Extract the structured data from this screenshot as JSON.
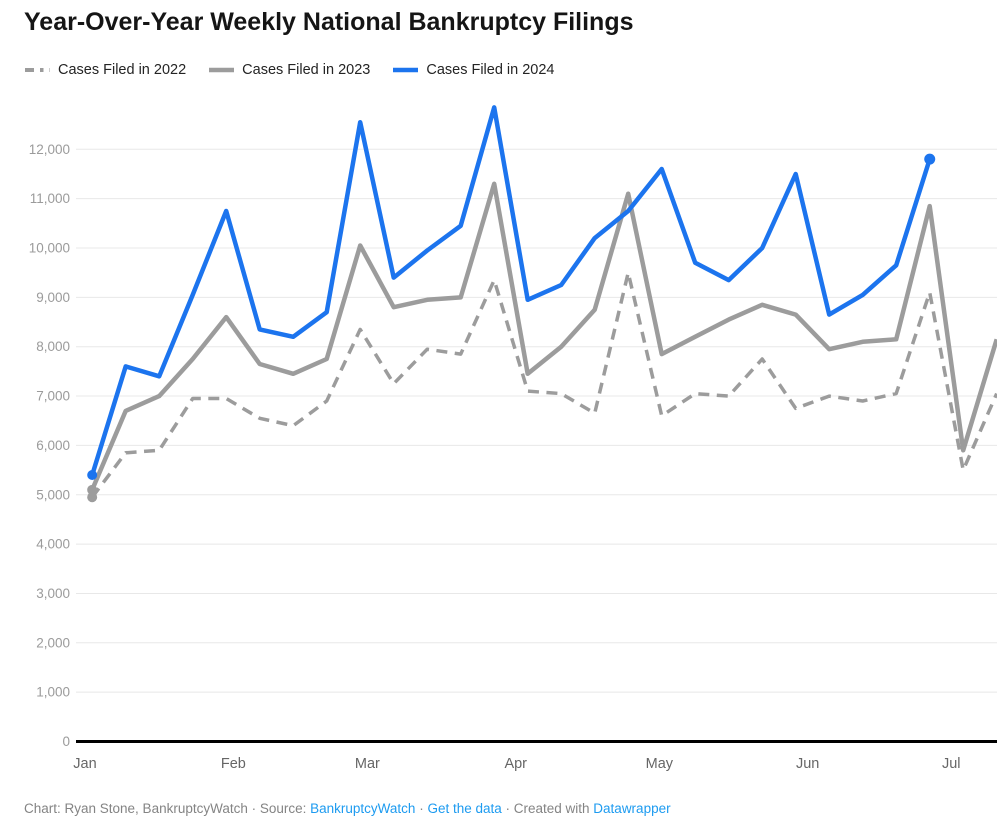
{
  "title": "Year-Over-Year Weekly National Bankruptcy Filings",
  "legend": {
    "items": [
      {
        "label": "Cases Filed in 2022",
        "style": "dashed",
        "color": "#9c9c9c"
      },
      {
        "label": "Cases Filed in 2023",
        "style": "solid",
        "color": "#9c9c9c"
      },
      {
        "label": "Cases Filed in 2024",
        "style": "solid",
        "color": "#1c74ee"
      }
    ]
  },
  "chart_data": {
    "type": "line",
    "title": "Year-Over-Year Weekly National Bankruptcy Filings",
    "x_frequency": "weekly",
    "x_tick_labels": [
      "Jan",
      "Feb",
      "Mar",
      "Apr",
      "May",
      "Jun",
      "Jul"
    ],
    "y_tick_labels": [
      "0",
      "1,000",
      "2,000",
      "3,000",
      "4,000",
      "5,000",
      "6,000",
      "7,000",
      "8,000",
      "9,000",
      "10,000",
      "11,000",
      "12,000"
    ],
    "y_ticks": [
      0,
      1000,
      2000,
      3000,
      4000,
      5000,
      6000,
      7000,
      8000,
      9000,
      10000,
      11000,
      12000
    ],
    "ylim": [
      0,
      12900
    ],
    "grid": "horizontal",
    "legend_position": "top-left",
    "series": [
      {
        "name": "Cases Filed in 2022",
        "color": "#9c9c9c",
        "line_style": "dashed",
        "start_dot": true,
        "end_dot": false,
        "values": [
          4950,
          5850,
          5900,
          6950,
          6950,
          6550,
          6400,
          6900,
          8350,
          7250,
          7950,
          7850,
          9350,
          7100,
          7050,
          6650,
          9500,
          6600,
          7050,
          7000,
          7750,
          6750,
          7000,
          6900,
          7050,
          9100,
          5500,
          7050
        ]
      },
      {
        "name": "Cases Filed in 2023",
        "color": "#9c9c9c",
        "line_style": "solid",
        "start_dot": true,
        "end_dot": false,
        "values": [
          5100,
          6700,
          7000,
          7750,
          8600,
          7650,
          7450,
          7750,
          10050,
          8800,
          8950,
          9000,
          11300,
          7450,
          8000,
          8750,
          11100,
          7850,
          8200,
          8550,
          8850,
          8650,
          7950,
          8100,
          8150,
          10850,
          5900,
          8150
        ]
      },
      {
        "name": "Cases Filed in 2024",
        "color": "#1c74ee",
        "line_style": "solid",
        "start_dot": true,
        "end_dot": true,
        "values": [
          5400,
          7600,
          7400,
          9050,
          10750,
          8350,
          8200,
          8700,
          12550,
          9400,
          9950,
          10450,
          12850,
          8950,
          9250,
          10200,
          10750,
          11600,
          9700,
          9350,
          10000,
          11500,
          8650,
          9050,
          9650,
          11800
        ]
      }
    ],
    "axis_color": "#000000",
    "gridline_color": "#e8e8e8"
  },
  "footer": {
    "segments": [
      {
        "text": "Chart: Ryan Stone, BankruptcyWatch",
        "link": false
      },
      {
        "text": " · ",
        "link": false
      },
      {
        "text": "Source: ",
        "link": false
      },
      {
        "text": "BankruptcyWatch",
        "link": true
      },
      {
        "text": " · ",
        "link": false
      },
      {
        "text": "Get the data",
        "link": true
      },
      {
        "text": " · ",
        "link": false
      },
      {
        "text": "Created with ",
        "link": false
      },
      {
        "text": "Datawrapper",
        "link": true
      }
    ]
  }
}
